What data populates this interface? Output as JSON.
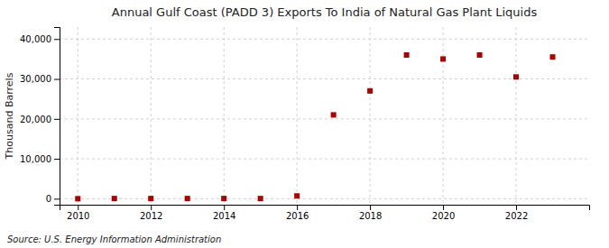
{
  "chart_data": {
    "type": "scatter",
    "title": "Annual Gulf Coast (PADD 3) Exports To India of Natural Gas Plant Liquids",
    "ylabel": "Thousand Barrels",
    "source": "Source: U.S. Energy Information Administration",
    "x": [
      2010,
      2011,
      2012,
      2013,
      2014,
      2015,
      2016,
      2017,
      2018,
      2019,
      2020,
      2021,
      2022,
      2023
    ],
    "values": [
      0,
      50,
      50,
      50,
      50,
      50,
      700,
      21000,
      27000,
      36000,
      35000,
      36000,
      30500,
      35500
    ],
    "color": "#aa0000",
    "marker": "square",
    "xlim": [
      2009.5,
      2024.0
    ],
    "ylim": [
      -1500,
      43000
    ],
    "xticks": [
      2010,
      2012,
      2014,
      2016,
      2018,
      2020,
      2022
    ],
    "yticks": [
      {
        "value": 0,
        "label": "0"
      },
      {
        "value": 10000,
        "label": "10,000"
      },
      {
        "value": 20000,
        "label": "20,000"
      },
      {
        "value": 30000,
        "label": "30,000"
      },
      {
        "value": 40000,
        "label": "40,000"
      }
    ],
    "grid": true
  }
}
